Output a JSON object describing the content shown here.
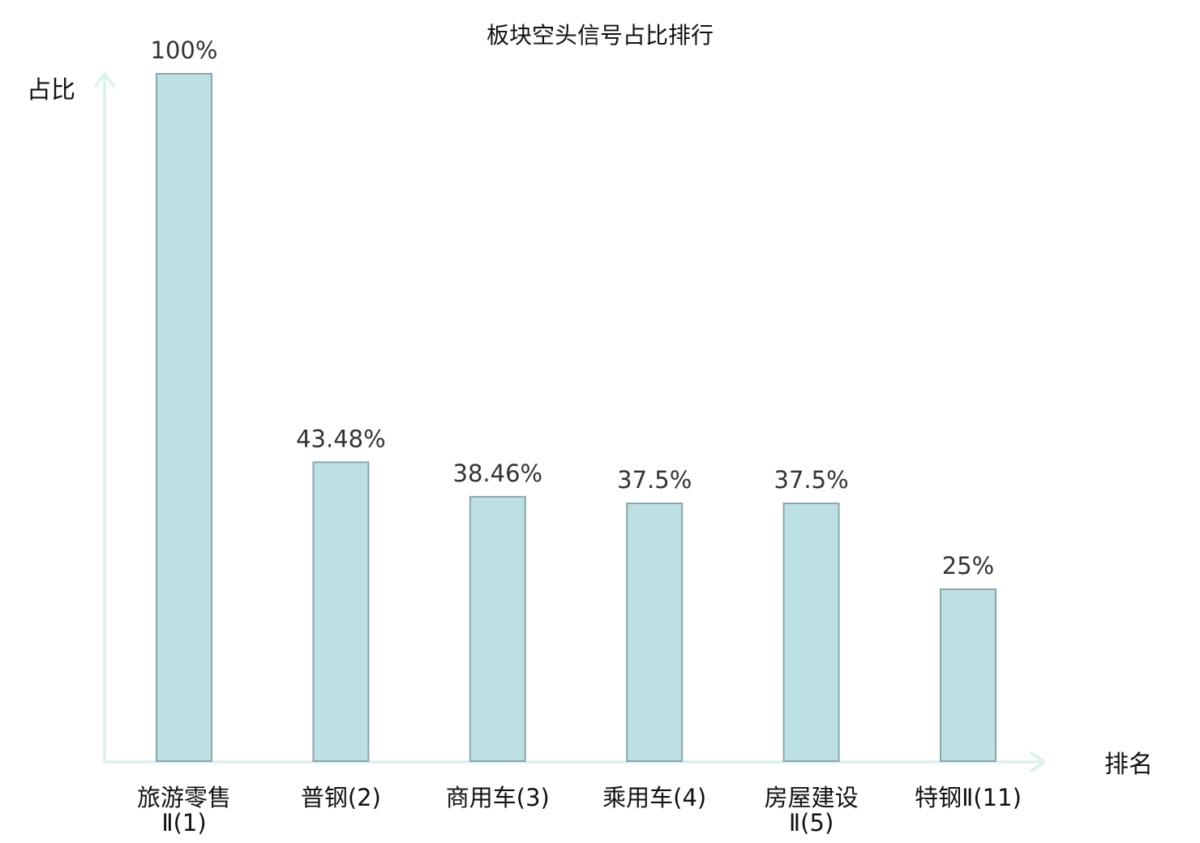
{
  "chart_data": {
    "type": "bar",
    "title": "板块空头信号占比排行",
    "ylabel": "占比",
    "xlabel": "排名",
    "ylim": [
      0,
      100
    ],
    "grid": false,
    "categories": [
      {
        "line1": "旅游零售",
        "line2": "Ⅱ(1)",
        "highlight": false
      },
      {
        "line1": "普钢(2)",
        "line2": "",
        "highlight": false
      },
      {
        "line1": "商用车(3)",
        "line2": "",
        "highlight": false
      },
      {
        "line1": "乘用车(4)",
        "line2": "",
        "highlight": false
      },
      {
        "line1": "房屋建设",
        "line2": "Ⅱ(5)",
        "highlight": false
      },
      {
        "line1": "特钢Ⅱ(11)",
        "line2": "",
        "highlight": true
      }
    ],
    "values": [
      100,
      43.48,
      38.46,
      37.5,
      37.5,
      25
    ],
    "value_labels": [
      "100%",
      "43.48%",
      "38.46%",
      "37.5%",
      "37.5%",
      "25%"
    ],
    "colors": {
      "bar_fill": "#bde0e3",
      "bar_stroke": "#8aa7aa",
      "axis": "#dff1ef",
      "highlight": "#e8201a",
      "text": "#111111",
      "value_text": "#333333"
    }
  }
}
